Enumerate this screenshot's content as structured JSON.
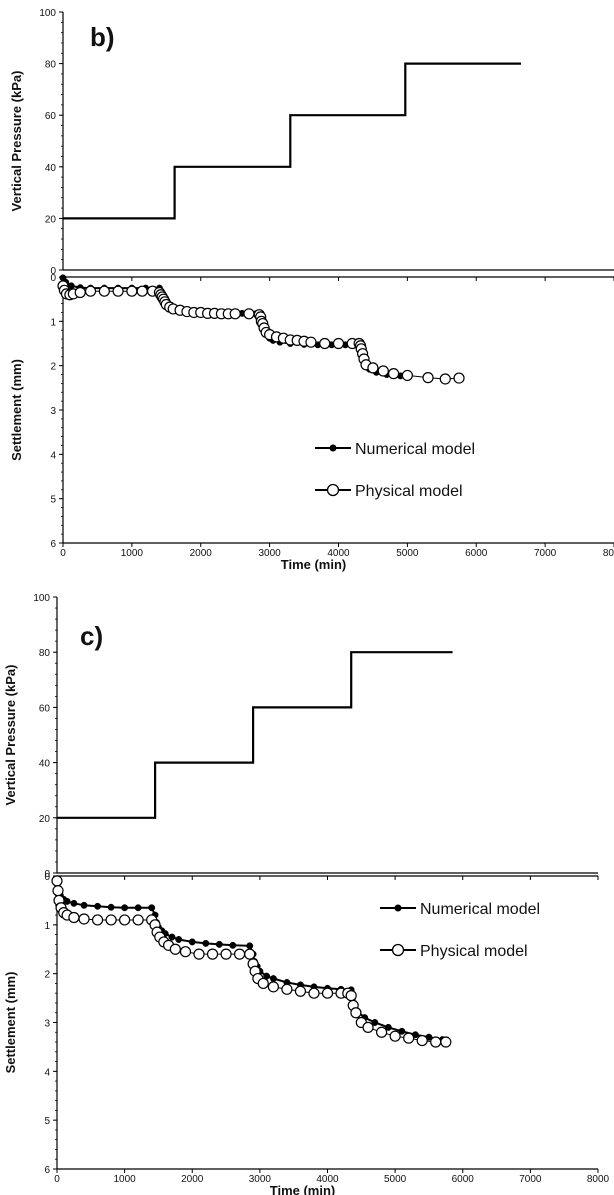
{
  "chart_data": [
    {
      "type": "line",
      "panel_label": "b)",
      "pressure": {
        "ylabel": "Vertical Pressure (kPa)",
        "ylim": [
          0,
          100
        ],
        "yticks": [
          0,
          20,
          40,
          60,
          80,
          100
        ],
        "x": [
          0,
          1620,
          1620,
          3300,
          3300,
          4970,
          4970,
          6650
        ],
        "y": [
          20,
          20,
          40,
          40,
          60,
          60,
          80,
          80
        ]
      },
      "settlement": {
        "ylabel": "Settlement (mm)",
        "ylim": [
          0,
          6
        ],
        "yticks": [
          0,
          1,
          2,
          3,
          4,
          5,
          6
        ],
        "xlabel": "Time (min)",
        "xlim": [
          0,
          8000
        ],
        "xticks": [
          0,
          1000,
          2000,
          3000,
          4000,
          5000,
          6000,
          7000,
          8000
        ],
        "legend_position": "center-right",
        "series": [
          {
            "name": "Numerical model",
            "marker": "filled-circle",
            "x": [
              0,
              40,
              120,
              250,
              400,
              600,
              800,
              1000,
              1200,
              1400,
              1440,
              1470,
              1500,
              1550,
              1650,
              1800,
              2000,
              2200,
              2400,
              2600,
              2800,
              2900,
              2930,
              2960,
              3000,
              3050,
              3150,
              3300,
              3500,
              3700,
              3900,
              4100,
              4300,
              4330,
              4360,
              4400,
              4450,
              4550,
              4700,
              4900
            ],
            "y": [
              0.02,
              0.12,
              0.2,
              0.24,
              0.25,
              0.25,
              0.25,
              0.25,
              0.25,
              0.25,
              0.45,
              0.55,
              0.62,
              0.68,
              0.72,
              0.76,
              0.78,
              0.8,
              0.81,
              0.82,
              0.83,
              1.05,
              1.2,
              1.3,
              1.38,
              1.43,
              1.47,
              1.5,
              1.52,
              1.53,
              1.53,
              1.53,
              1.53,
              1.75,
              1.9,
              2.0,
              2.08,
              2.15,
              2.2,
              2.23
            ]
          },
          {
            "name": "Physical model",
            "marker": "open-circle",
            "x": [
              0,
              20,
              50,
              100,
              150,
              250,
              400,
              600,
              800,
              1000,
              1150,
              1300,
              1400,
              1420,
              1440,
              1460,
              1480,
              1500,
              1550,
              1600,
              1700,
              1800,
              1900,
              2000,
              2100,
              2200,
              2300,
              2400,
              2500,
              2700,
              2850,
              2870,
              2880,
              2900,
              2920,
              2950,
              3000,
              3100,
              3200,
              3300,
              3400,
              3500,
              3600,
              3800,
              4000,
              4200,
              4300,
              4320,
              4330,
              4350,
              4370,
              4400,
              4500,
              4650,
              4800,
              5000,
              5300,
              5550,
              5750
            ],
            "y": [
              0.2,
              0.3,
              0.38,
              0.4,
              0.38,
              0.35,
              0.32,
              0.32,
              0.32,
              0.32,
              0.32,
              0.32,
              0.35,
              0.4,
              0.45,
              0.5,
              0.56,
              0.62,
              0.68,
              0.72,
              0.75,
              0.78,
              0.8,
              0.8,
              0.82,
              0.82,
              0.83,
              0.83,
              0.83,
              0.83,
              0.85,
              0.9,
              1.0,
              1.05,
              1.15,
              1.25,
              1.3,
              1.35,
              1.38,
              1.42,
              1.43,
              1.45,
              1.47,
              1.5,
              1.5,
              1.5,
              1.5,
              1.55,
              1.62,
              1.73,
              1.85,
              1.98,
              2.05,
              2.12,
              2.18,
              2.22,
              2.27,
              2.3,
              2.28
            ]
          }
        ]
      }
    },
    {
      "type": "line",
      "panel_label": "c)",
      "pressure": {
        "ylabel": "Vertical Pressure (kPa)",
        "ylim": [
          0,
          100
        ],
        "yticks": [
          0,
          20,
          40,
          60,
          80,
          100
        ],
        "x": [
          0,
          1450,
          1450,
          2900,
          2900,
          4350,
          4350,
          5850
        ],
        "y": [
          20,
          20,
          40,
          40,
          60,
          60,
          80,
          80
        ]
      },
      "settlement": {
        "ylabel": "Settlement (mm)",
        "ylim": [
          0,
          6
        ],
        "yticks": [
          0,
          1,
          2,
          3,
          4,
          5,
          6
        ],
        "xlabel": "Time (min)",
        "xlim": [
          0,
          8000
        ],
        "xticks": [
          0,
          1000,
          2000,
          3000,
          4000,
          5000,
          6000,
          7000,
          8000
        ],
        "legend_position": "top-right",
        "series": [
          {
            "name": "Numerical model",
            "marker": "filled-circle",
            "x": [
              0,
              20,
              50,
              100,
              150,
              250,
              400,
              600,
              800,
              1000,
              1200,
              1400,
              1450,
              1470,
              1500,
              1550,
              1600,
              1700,
              1800,
              2000,
              2200,
              2400,
              2600,
              2850,
              2900,
              2920,
              2960,
              3000,
              3100,
              3200,
              3400,
              3600,
              3800,
              4000,
              4200,
              4350,
              4370,
              4400,
              4450,
              4550,
              4700,
              4900,
              5100,
              5300,
              5500,
              5700
            ],
            "y": [
              0.1,
              0.25,
              0.4,
              0.48,
              0.52,
              0.56,
              0.6,
              0.62,
              0.64,
              0.65,
              0.65,
              0.65,
              0.8,
              0.95,
              1.05,
              1.12,
              1.18,
              1.25,
              1.3,
              1.35,
              1.38,
              1.4,
              1.42,
              1.43,
              1.6,
              1.75,
              1.85,
              1.95,
              2.05,
              2.1,
              2.18,
              2.23,
              2.27,
              2.3,
              2.32,
              2.33,
              2.5,
              2.65,
              2.78,
              2.9,
              3.0,
              3.1,
              3.18,
              3.25,
              3.3,
              3.35
            ]
          },
          {
            "name": "Physical model",
            "marker": "open-circle",
            "x": [
              0,
              15,
              30,
              60,
              100,
              150,
              250,
              400,
              600,
              800,
              1000,
              1200,
              1400,
              1450,
              1480,
              1520,
              1580,
              1650,
              1750,
              1900,
              2100,
              2300,
              2500,
              2700,
              2850,
              2900,
              2930,
              2970,
              3050,
              3200,
              3400,
              3600,
              3800,
              4000,
              4200,
              4300,
              4350,
              4380,
              4420,
              4500,
              4600,
              4800,
              5000,
              5200,
              5400,
              5600,
              5750
            ],
            "y": [
              0.1,
              0.3,
              0.5,
              0.65,
              0.75,
              0.8,
              0.85,
              0.88,
              0.9,
              0.9,
              0.9,
              0.9,
              0.9,
              1.0,
              1.15,
              1.25,
              1.35,
              1.42,
              1.5,
              1.55,
              1.6,
              1.6,
              1.6,
              1.6,
              1.6,
              1.8,
              1.95,
              2.1,
              2.2,
              2.27,
              2.32,
              2.36,
              2.4,
              2.4,
              2.4,
              2.4,
              2.45,
              2.65,
              2.8,
              3.0,
              3.1,
              3.2,
              3.28,
              3.32,
              3.37,
              3.4,
              3.4
            ]
          }
        ]
      }
    }
  ]
}
